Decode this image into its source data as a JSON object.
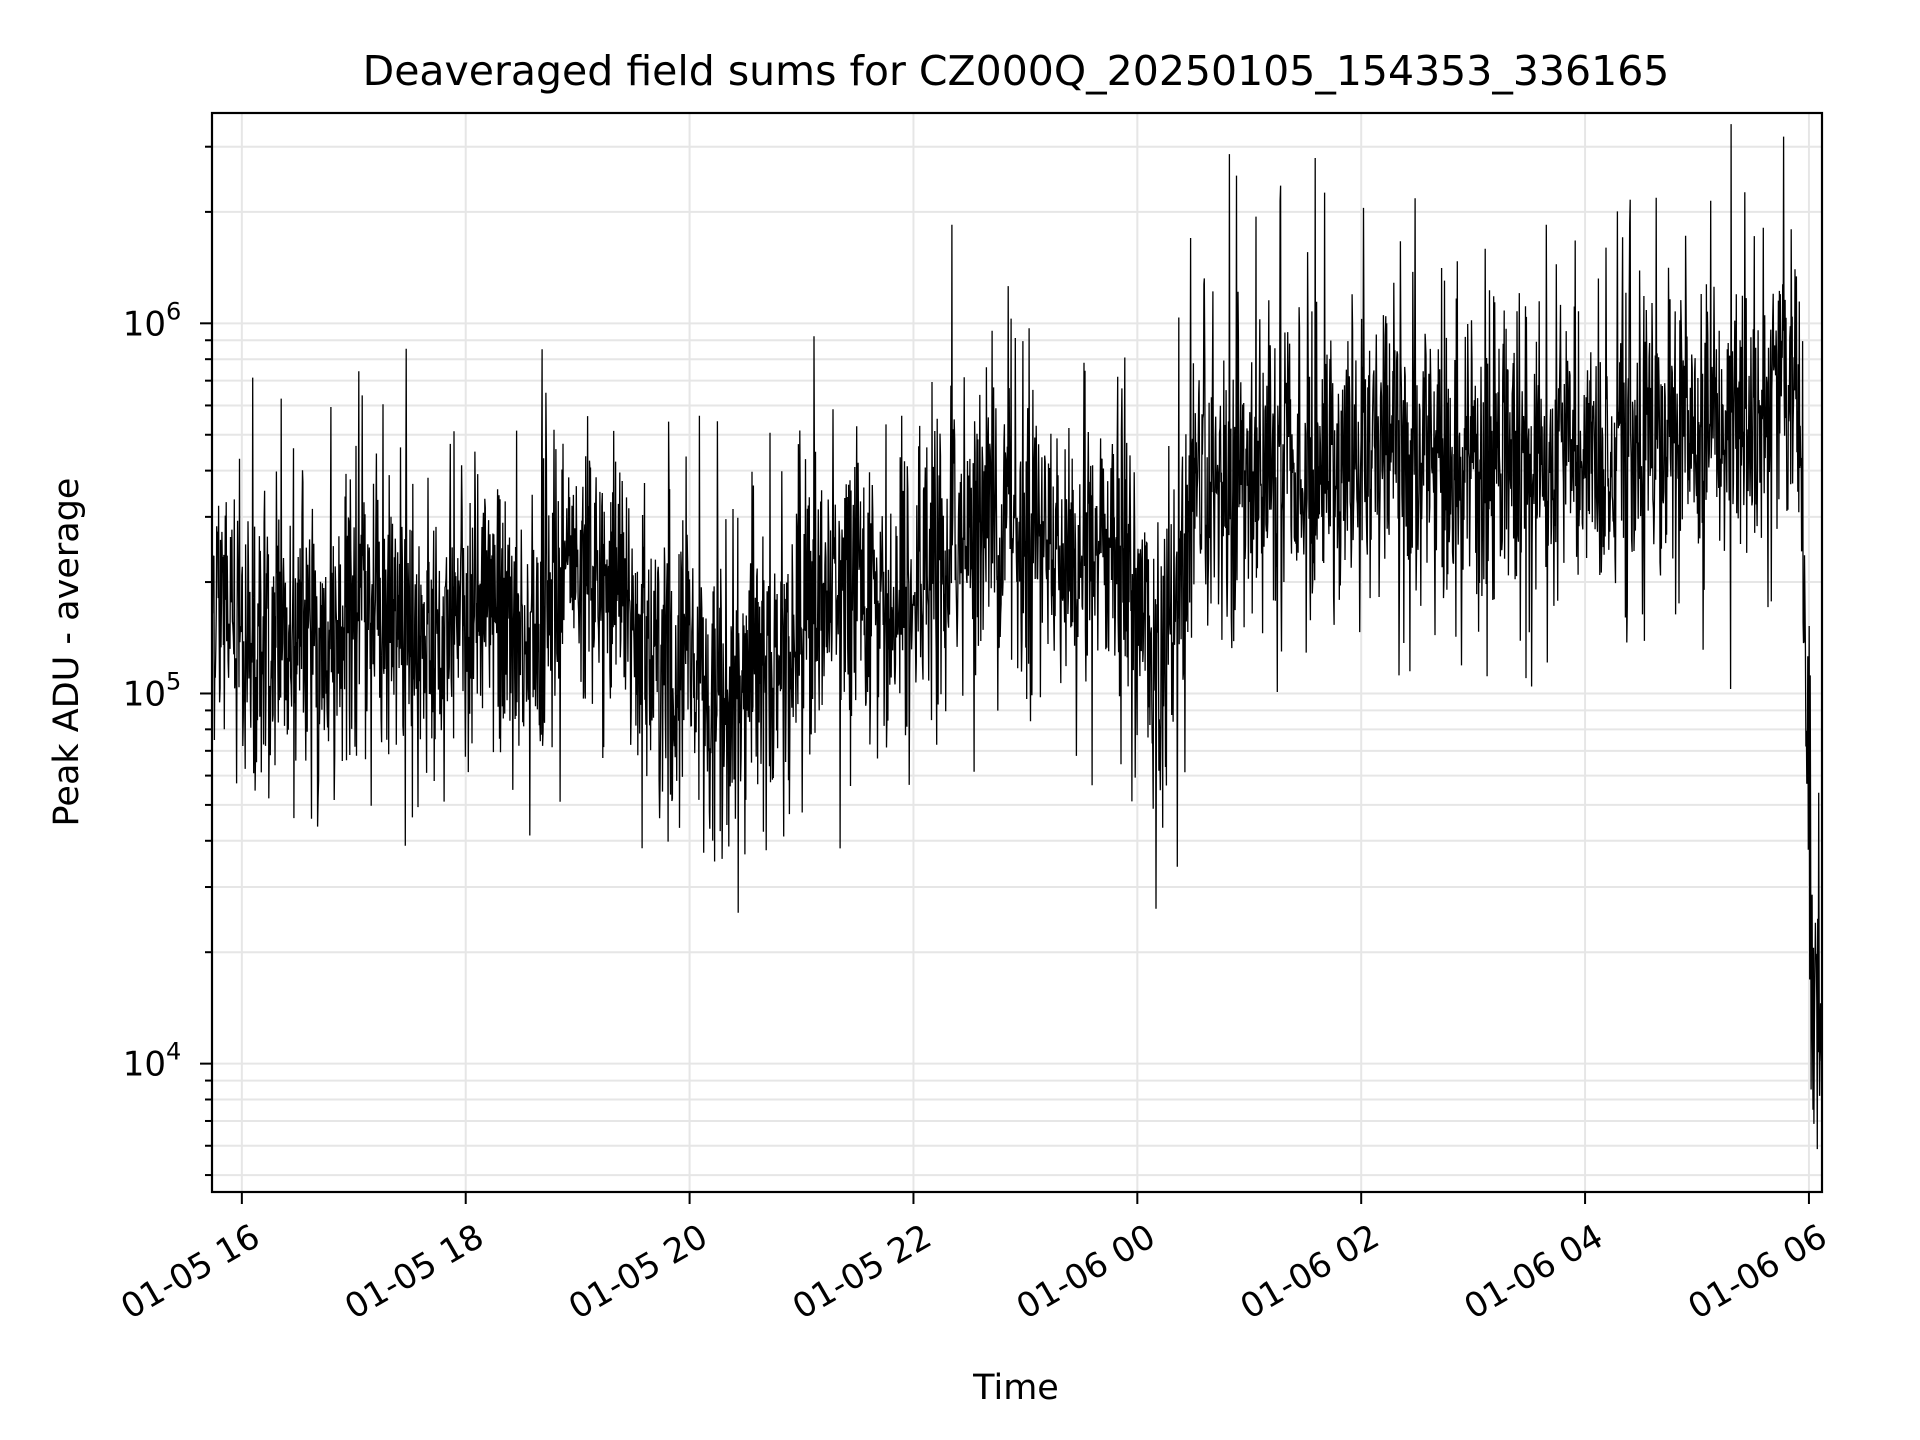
{
  "chart_data": {
    "type": "line",
    "title": "Deaveraged field sums for CZ000Q_20250105_154353_336165",
    "xlabel": "Time",
    "ylabel": "Peak ADU - average",
    "x_axis": {
      "type": "time",
      "range": [
        "2025-01-05 15:44",
        "2025-01-06 06:07"
      ],
      "tick_labels": [
        "01-05 16",
        "01-05 18",
        "01-05 20",
        "01-05 22",
        "01-06 00",
        "01-06 02",
        "01-06 04",
        "01-06 06"
      ]
    },
    "y_axis": {
      "scale": "log",
      "range": [
        4500,
        3700000
      ],
      "major_ticks": [
        {
          "value": 10000,
          "base": "10",
          "exp": "4"
        },
        {
          "value": 100000,
          "base": "10",
          "exp": "5"
        },
        {
          "value": 1000000,
          "base": "10",
          "exp": "6"
        }
      ]
    },
    "grid": true,
    "series_color": "#000000",
    "series": [
      {
        "x": [
          "01-05 15:44",
          "01-05 15:50",
          "01-05 16:00",
          "01-05 16:15",
          "01-05 16:30",
          "01-05 16:45",
          "01-05 17:00",
          "01-05 17:15",
          "01-05 17:30",
          "01-05 17:45",
          "01-05 18:00",
          "01-05 18:15",
          "01-05 18:30",
          "01-05 18:45",
          "01-05 19:00",
          "01-05 19:15",
          "01-05 19:30",
          "01-05 19:45",
          "01-05 20:00",
          "01-05 20:15",
          "01-05 20:30",
          "01-05 20:45",
          "01-05 21:00",
          "01-05 21:15",
          "01-05 21:30",
          "01-05 21:45",
          "01-05 22:00",
          "01-05 22:15",
          "01-05 22:30",
          "01-05 22:45",
          "01-05 23:00",
          "01-05 23:15",
          "01-05 23:30",
          "01-05 23:45",
          "01-06 00:00",
          "01-06 00:15",
          "01-06 00:30",
          "01-06 00:45",
          "01-06 01:00",
          "01-06 01:15",
          "01-06 01:30",
          "01-06 01:45",
          "01-06 02:00",
          "01-06 02:15",
          "01-06 02:30",
          "01-06 02:45",
          "01-06 03:00",
          "01-06 03:15",
          "01-06 03:30",
          "01-06 03:45",
          "01-06 04:00",
          "01-06 04:15",
          "01-06 04:30",
          "01-06 04:45",
          "01-06 05:00",
          "01-06 05:15",
          "01-06 05:30",
          "01-06 05:45",
          "01-06 05:55",
          "01-06 06:00",
          "01-06 06:03",
          "01-06 06:07"
        ],
        "y": [
          200000,
          170000,
          140000,
          150000,
          140000,
          130000,
          160000,
          150000,
          140000,
          130000,
          150000,
          160000,
          140000,
          170000,
          200000,
          180000,
          150000,
          120000,
          100000,
          95000,
          100000,
          110000,
          150000,
          180000,
          170000,
          150000,
          170000,
          230000,
          280000,
          300000,
          280000,
          240000,
          230000,
          260000,
          170000,
          110000,
          300000,
          350000,
          380000,
          400000,
          360000,
          420000,
          450000,
          460000,
          440000,
          430000,
          420000,
          410000,
          430000,
          440000,
          450000,
          460000,
          470000,
          480000,
          500000,
          510000,
          520000,
          700000,
          600000,
          40000,
          15000,
          20000
        ]
      }
    ]
  }
}
